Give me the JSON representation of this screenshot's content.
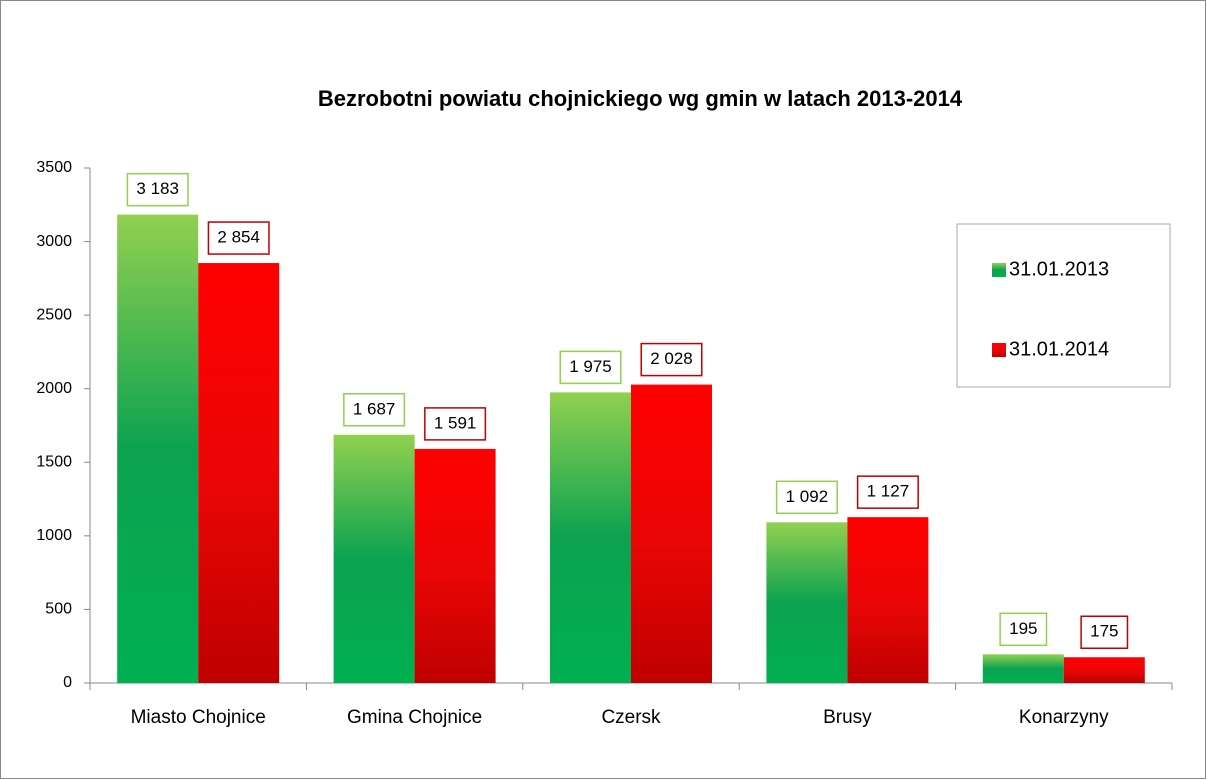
{
  "chart_data": {
    "type": "bar",
    "title": "Bezrobotni powiatu chojnickiego wg gmin w latach 2013-2014",
    "categories": [
      "Miasto Chojnice",
      "Gmina Chojnice",
      "Czersk",
      "Brusy",
      "Konarzyny"
    ],
    "series": [
      {
        "name": "31.01.2013",
        "color": "#00b050",
        "values": [
          3183,
          1687,
          1975,
          1092,
          195
        ],
        "value_labels": [
          "3 183",
          "1 687",
          "1 975",
          "1 092",
          "195"
        ]
      },
      {
        "name": "31.01.2014",
        "color": "#ff0000",
        "values": [
          2854,
          1591,
          2028,
          1127,
          175
        ],
        "value_labels": [
          "2 854",
          "1 591",
          "2 028",
          "1 127",
          "175"
        ]
      }
    ],
    "ylim": [
      0,
      3500
    ],
    "yticks": [
      0,
      500,
      1000,
      1500,
      2000,
      2500,
      3000,
      3500
    ],
    "grid": false,
    "legend": "right"
  }
}
